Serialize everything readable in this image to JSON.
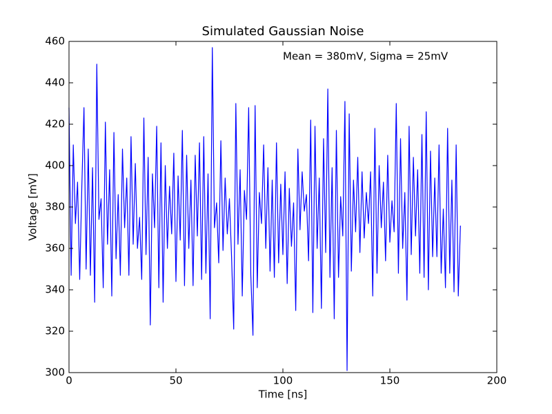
{
  "chart_data": {
    "type": "line",
    "title": "Simulated Gaussian Noise",
    "annotation": "Mean = 380mV, Sigma = 25mV",
    "xlabel": "Time [ns]",
    "ylabel": "Voltage [mV]",
    "color": "#0000ff",
    "xlim": [
      0,
      200
    ],
    "xticks": [
      0,
      50,
      100,
      150,
      200
    ],
    "ylim": [
      300,
      460
    ],
    "yticks": [
      300,
      320,
      340,
      360,
      380,
      400,
      420,
      440,
      460
    ],
    "x": [
      0,
      1,
      2,
      3,
      4,
      5,
      6,
      7,
      8,
      9,
      10,
      11,
      12,
      13,
      14,
      15,
      16,
      17,
      18,
      19,
      20,
      21,
      22,
      23,
      24,
      25,
      26,
      27,
      28,
      29,
      30,
      31,
      32,
      33,
      34,
      35,
      36,
      37,
      38,
      39,
      40,
      41,
      42,
      43,
      44,
      45,
      46,
      47,
      48,
      49,
      50,
      51,
      52,
      53,
      54,
      55,
      56,
      57,
      58,
      59,
      60,
      61,
      62,
      63,
      64,
      65,
      66,
      67,
      68,
      69,
      70,
      71,
      72,
      73,
      74,
      75,
      76,
      77,
      78,
      79,
      80,
      81,
      82,
      83,
      84,
      85,
      86,
      87,
      88,
      89,
      90,
      91,
      92,
      93,
      94,
      95,
      96,
      97,
      98,
      99,
      100,
      101,
      102,
      103,
      104,
      105,
      106,
      107,
      108,
      109,
      110,
      111,
      112,
      113,
      114,
      115,
      116,
      117,
      118,
      119,
      120,
      121,
      122,
      123,
      124,
      125,
      126,
      127,
      128,
      129,
      130,
      131,
      132,
      133,
      134,
      135,
      136,
      137,
      138,
      139,
      140,
      141,
      142,
      143,
      144,
      145,
      146,
      147,
      148,
      149,
      150,
      151,
      152,
      153,
      154,
      155,
      156,
      157,
      158,
      159,
      160,
      161,
      162,
      163,
      164,
      165,
      166,
      167,
      168,
      169,
      170,
      171,
      172,
      173,
      174,
      175,
      176,
      177,
      178,
      179,
      180,
      181,
      182,
      183
    ],
    "values": [
      428,
      347,
      410,
      372,
      392,
      345,
      390,
      428,
      350,
      408,
      347,
      399,
      334,
      449,
      374,
      384,
      341,
      421,
      362,
      398,
      337,
      416,
      355,
      386,
      347,
      408,
      370,
      394,
      347,
      414,
      362,
      401,
      360,
      375,
      345,
      423,
      357,
      404,
      323,
      396,
      370,
      419,
      341,
      411,
      334,
      400,
      360,
      390,
      367,
      406,
      344,
      395,
      364,
      417,
      342,
      405,
      360,
      393,
      342,
      405,
      366,
      411,
      345,
      414,
      348,
      396,
      326,
      457,
      370,
      382,
      353,
      412,
      359,
      394,
      367,
      384,
      356,
      321,
      430,
      362,
      398,
      337,
      388,
      374,
      428,
      347,
      318,
      429,
      341,
      387,
      372,
      410,
      360,
      399,
      349,
      393,
      346,
      411,
      353,
      391,
      357,
      397,
      343,
      389,
      361,
      382,
      330,
      408,
      369,
      397,
      378,
      386,
      354,
      422,
      329,
      419,
      360,
      394,
      331,
      413,
      358,
      437,
      346,
      399,
      326,
      417,
      346,
      385,
      366,
      431,
      301,
      425,
      349,
      393,
      368,
      404,
      358,
      397,
      365,
      387,
      372,
      397,
      337,
      418,
      348,
      400,
      370,
      392,
      354,
      405,
      363,
      383,
      368,
      430,
      348,
      413,
      360,
      387,
      335,
      419,
      357,
      404,
      366,
      398,
      348,
      415,
      346,
      426,
      340,
      407,
      356,
      394,
      356,
      410,
      348,
      379,
      341,
      418,
      348,
      393,
      339,
      410,
      337,
      371
    ]
  }
}
